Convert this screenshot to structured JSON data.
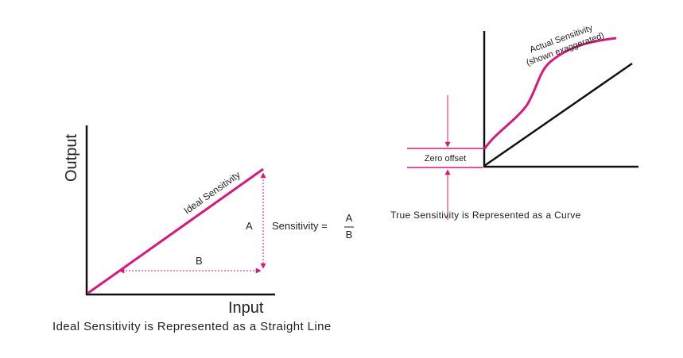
{
  "left_diagram": {
    "y_axis_label": "Output",
    "x_axis_label": "Input",
    "line_label": "Ideal Sensitivity",
    "rise_label": "A",
    "run_label": "B",
    "formula_prefix": "Sensitivity =",
    "formula_numerator": "A",
    "formula_denominator": "B",
    "caption": "Ideal Sensitivity is Represented as a Straight Line"
  },
  "right_diagram": {
    "curve_label_line1": "Actual Sensitivity",
    "curve_label_line2": "(shown exaggerated)",
    "offset_label": "Zero offset",
    "caption": "True Sensitivity is Represented as a Curve"
  },
  "colors": {
    "accent": "#d6197e",
    "axis": "#111111",
    "text": "#222222"
  }
}
